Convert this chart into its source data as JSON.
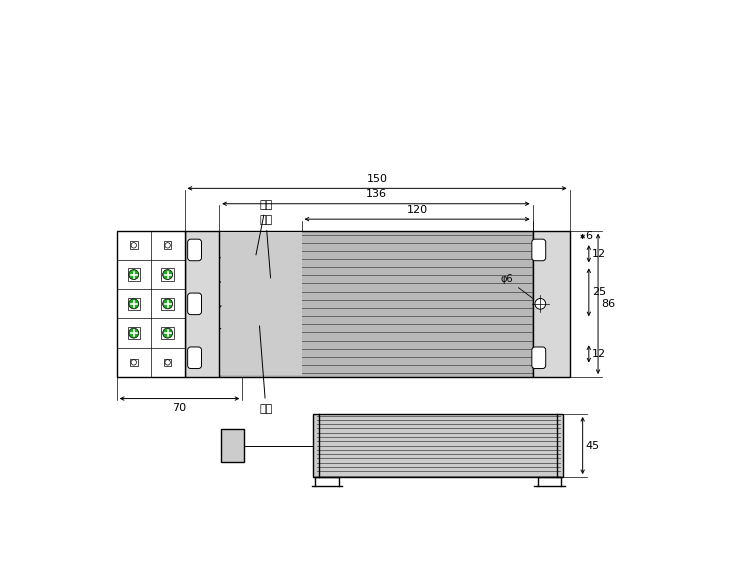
{
  "bg_color": "#ffffff",
  "line_color": "#000000",
  "green_color": "#22aa22",
  "dim_color": "#000000",
  "gray_body": "#cccccc",
  "gray_flange": "#e0e0e0",
  "labels": {
    "red_wire": "红线",
    "yellow_wire": "黄线",
    "black_wire": "黑线",
    "phi6": "φ6",
    "dim_150": "150",
    "dim_136": "136",
    "dim_120": "120",
    "dim_6": "6",
    "dim_12a": "12",
    "dim_25": "25",
    "dim_12b": "12",
    "dim_86": "86",
    "dim_70": "70",
    "dim_45": "45"
  }
}
